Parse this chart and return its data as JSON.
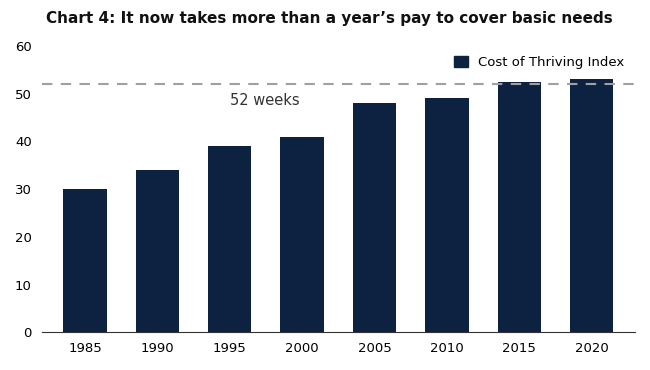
{
  "title": "Chart 4: It now takes more than a year’s pay to cover basic needs",
  "categories": [
    1985,
    1990,
    1995,
    2000,
    2005,
    2010,
    2015,
    2020
  ],
  "values": [
    30.0,
    34.0,
    39.0,
    41.0,
    48.0,
    49.0,
    52.5,
    53.0
  ],
  "bar_color": "#0d2240",
  "background_color": "#ffffff",
  "ylim": [
    0,
    60
  ],
  "yticks": [
    0,
    10,
    20,
    30,
    40,
    50,
    60
  ],
  "reference_line_y": 52,
  "reference_line_color": "#a0a0a0",
  "reference_label": "52 weeks",
  "legend_label": "Cost of Thriving Index",
  "title_fontsize": 11,
  "tick_fontsize": 9.5,
  "legend_fontsize": 9.5,
  "annotation_fontsize": 10.5
}
